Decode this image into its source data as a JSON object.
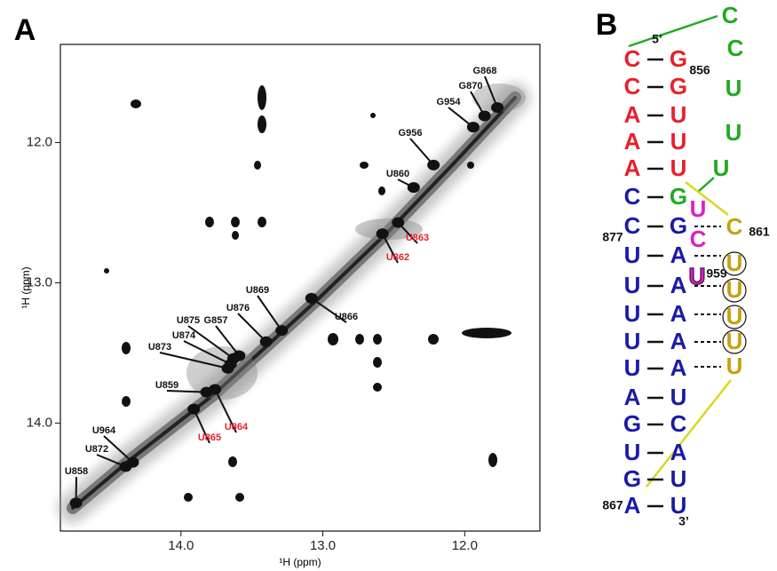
{
  "panel_a": {
    "label": "A",
    "x_axis": {
      "label": "¹H (ppm)",
      "lim": [
        14.85,
        11.47
      ],
      "ticks": [
        {
          "value": 14,
          "label": "14.0"
        },
        {
          "value": 13,
          "label": "13.0"
        },
        {
          "value": 12,
          "label": "12.0"
        }
      ]
    },
    "y_axis": {
      "label": "¹H (ppm)",
      "lim": [
        11.3,
        14.77
      ],
      "ticks": [
        {
          "value": 12,
          "label": "12.0"
        },
        {
          "value": 13,
          "label": "13.0"
        },
        {
          "value": 14,
          "label": "14.0"
        }
      ]
    },
    "peaks": [
      {
        "label": "G868",
        "x": 11.77,
        "y": 11.75,
        "color": "#111111"
      },
      {
        "label": "G870",
        "x": 11.86,
        "y": 11.81,
        "color": "#111111"
      },
      {
        "label": "G954",
        "x": 11.94,
        "y": 11.89,
        "color": "#111111"
      },
      {
        "label": "G956",
        "x": 12.22,
        "y": 12.16,
        "color": "#111111"
      },
      {
        "label": "U860",
        "x": 12.36,
        "y": 12.32,
        "color": "#111111"
      },
      {
        "label": "U863",
        "x": 12.47,
        "y": 12.57,
        "color": "#e8202a"
      },
      {
        "label": "U862",
        "x": 12.58,
        "y": 12.65,
        "color": "#e8202a"
      },
      {
        "label": "U866",
        "x": 13.08,
        "y": 13.11,
        "color": "#111111"
      },
      {
        "label": "U869",
        "x": 13.29,
        "y": 13.34,
        "color": "#111111"
      },
      {
        "label": "U876",
        "x": 13.4,
        "y": 13.42,
        "color": "#111111"
      },
      {
        "label": "G857",
        "x": 13.59,
        "y": 13.52,
        "color": "#111111"
      },
      {
        "label": "U875",
        "x": 13.63,
        "y": 13.54,
        "color": "#111111"
      },
      {
        "label": "U874",
        "x": 13.65,
        "y": 13.58,
        "color": "#111111"
      },
      {
        "label": "U873",
        "x": 13.67,
        "y": 13.61,
        "color": "#111111"
      },
      {
        "label": "U859",
        "x": 13.82,
        "y": 13.78,
        "color": "#111111"
      },
      {
        "label": "U864",
        "x": 13.76,
        "y": 13.76,
        "color": "#e8202a"
      },
      {
        "label": "U865",
        "x": 13.91,
        "y": 13.9,
        "color": "#e8202a"
      },
      {
        "label": "U964",
        "x": 14.34,
        "y": 14.28,
        "color": "#111111"
      },
      {
        "label": "U872",
        "x": 14.39,
        "y": 14.31,
        "color": "#111111"
      },
      {
        "label": "U858",
        "x": 14.74,
        "y": 14.57,
        "color": "#111111"
      }
    ]
  },
  "panel_b": {
    "label": "B",
    "nucleotides": [
      {
        "letter": "C",
        "color": "#e8202a"
      },
      {
        "letter": "C",
        "color": "#e8202a"
      },
      {
        "letter": "A",
        "color": "#e8202a"
      },
      {
        "letter": "A",
        "color": "#e8202a"
      },
      {
        "letter": "A",
        "color": "#e8202a"
      },
      {
        "letter": "C",
        "color": "#1a1aa8"
      },
      {
        "letter": "C",
        "color": "#1a1aa8"
      },
      {
        "letter": "U",
        "color": "#1a1aa8"
      },
      {
        "letter": "U",
        "color": "#1a1aa8"
      },
      {
        "letter": "U",
        "color": "#1a1aa8"
      },
      {
        "letter": "U",
        "color": "#1a1aa8"
      },
      {
        "letter": "U",
        "color": "#1a1aa8"
      },
      {
        "letter": "A",
        "color": "#1a1aa8"
      },
      {
        "letter": "G",
        "color": "#1a1aa8"
      },
      {
        "letter": "U",
        "color": "#1a1aa8"
      },
      {
        "letter": "G",
        "color": "#1a1aa8"
      },
      {
        "letter": "A",
        "color": "#1a1aa8"
      },
      {
        "letter": "G",
        "color": "#e8202a"
      },
      {
        "letter": "G",
        "color": "#e8202a"
      },
      {
        "letter": "U",
        "color": "#e8202a"
      },
      {
        "letter": "U",
        "color": "#e8202a"
      },
      {
        "letter": "U",
        "color": "#e8202a"
      },
      {
        "letter": "G",
        "color": "#22aa22"
      },
      {
        "letter": "G",
        "color": "#1a1aa8"
      },
      {
        "letter": "A",
        "color": "#1a1aa8"
      },
      {
        "letter": "A",
        "color": "#1a1aa8"
      },
      {
        "letter": "A",
        "color": "#1a1aa8"
      },
      {
        "letter": "A",
        "color": "#1a1aa8"
      },
      {
        "letter": "A",
        "color": "#1a1aa8"
      },
      {
        "letter": "U",
        "color": "#1a1aa8"
      },
      {
        "letter": "C",
        "color": "#1a1aa8"
      },
      {
        "letter": "A",
        "color": "#1a1aa8"
      },
      {
        "letter": "U",
        "color": "#1a1aa8"
      },
      {
        "letter": "U",
        "color": "#1a1aa8"
      },
      {
        "letter": "C",
        "color": "#22aa22"
      },
      {
        "letter": "C",
        "color": "#22aa22"
      },
      {
        "letter": "U",
        "color": "#22aa22"
      },
      {
        "letter": "U",
        "color": "#22aa22"
      },
      {
        "letter": "U",
        "color": "#22aa22"
      },
      {
        "letter": "U",
        "color": "#e020c0"
      },
      {
        "letter": "C",
        "color": "#e020c0"
      },
      {
        "letter": "U",
        "color": "#e020c0"
      },
      {
        "letter": "C",
        "color": "#c8a010"
      },
      {
        "letter": "U",
        "color": "#c8a010"
      },
      {
        "letter": "U",
        "color": "#c8a010"
      },
      {
        "letter": "U",
        "color": "#c8a010"
      },
      {
        "letter": "U",
        "color": "#c8a010"
      },
      {
        "letter": "U",
        "color": "#c8a010"
      }
    ],
    "numbers": [
      "5’",
      "856",
      "877",
      "861",
      "959",
      "867",
      "3’"
    ]
  }
}
